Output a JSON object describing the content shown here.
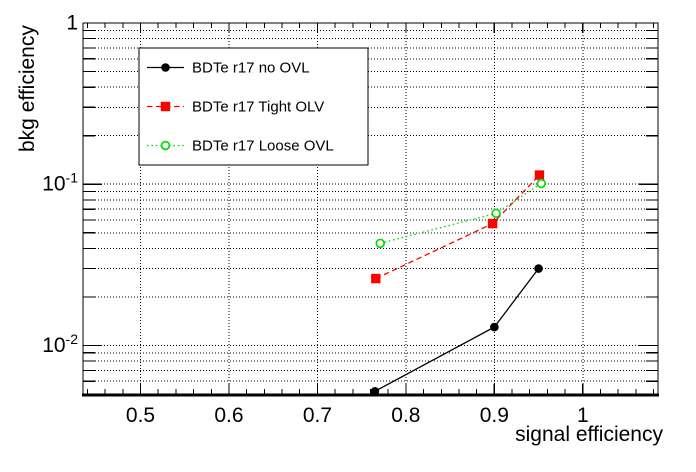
{
  "figure": {
    "background_color": "#ffffff",
    "frame_color": "#000000",
    "grid_style": "dotted"
  },
  "chart_data": {
    "type": "line",
    "title": "",
    "xlabel": "signal efficiency",
    "ylabel": "bkg efficiency",
    "xscale": "linear",
    "yscale": "log",
    "xlim": [
      0.435,
      1.085
    ],
    "ylim": [
      0.005,
      1.0
    ],
    "grid": true,
    "legend_position": "top-left",
    "x_ticks": {
      "major": [
        0.5,
        0.6,
        0.7,
        0.8,
        0.9,
        1.0
      ],
      "labels": [
        "0.5",
        "0.6",
        "0.7",
        "0.8",
        "0.9",
        "1"
      ],
      "minor_step": 0.02
    },
    "y_ticks": {
      "decades": [
        1,
        0.1,
        0.01
      ],
      "labels": [
        {
          "mantissa": "1",
          "exponent": ""
        },
        {
          "mantissa": "10",
          "exponent": "-1"
        },
        {
          "mantissa": "10",
          "exponent": "-2"
        }
      ]
    },
    "series": [
      {
        "name": "BDTe r17 no OVL",
        "color": "#000000",
        "line_style": "solid",
        "marker": "filled-circle",
        "points": [
          [
            0.765,
            0.0052
          ],
          [
            0.9,
            0.013
          ],
          [
            0.95,
            0.03
          ]
        ]
      },
      {
        "name": "BDTe r17 Tight OLV",
        "color": "#ff0000",
        "line_style": "dashed",
        "marker": "filled-square",
        "points": [
          [
            0.766,
            0.026
          ],
          [
            0.898,
            0.057
          ],
          [
            0.951,
            0.114
          ]
        ]
      },
      {
        "name": "BDTe r17 Loose OVL",
        "color": "#00dd00",
        "line_style": "dotted",
        "marker": "open-circle",
        "points": [
          [
            0.771,
            0.043
          ],
          [
            0.902,
            0.066
          ],
          [
            0.953,
            0.101
          ]
        ]
      }
    ]
  }
}
